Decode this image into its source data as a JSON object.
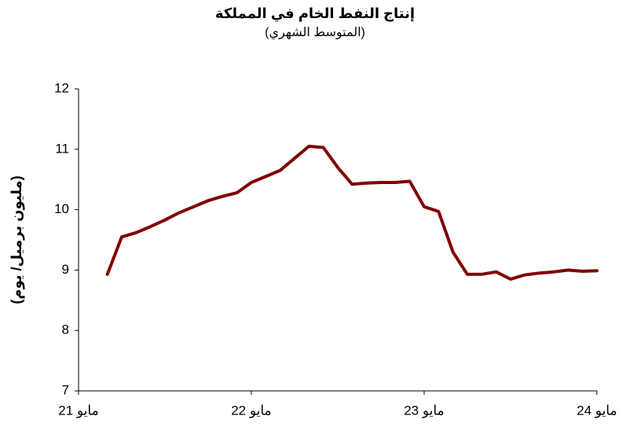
{
  "chart_data": {
    "type": "line",
    "title": "إنتاج النفط الخام في المملكة",
    "subtitle": "(المتوسط الشهري)",
    "y_label": "(مليون برميل/ يوم)",
    "categories": [
      "مايو 21",
      null,
      null,
      null,
      null,
      null,
      null,
      null,
      null,
      null,
      null,
      null,
      "مايو 22",
      null,
      null,
      null,
      null,
      null,
      null,
      null,
      null,
      null,
      null,
      null,
      "مايو 23",
      null,
      null,
      null,
      null,
      null,
      null,
      null,
      null,
      null,
      null,
      null,
      "مايو 24"
    ],
    "series": [
      {
        "name": "إنتاج النفط",
        "color": "#800000",
        "values": [
          null,
          null,
          8.93,
          9.55,
          9.62,
          9.72,
          9.83,
          9.95,
          10.05,
          10.15,
          10.22,
          10.28,
          10.45,
          10.55,
          10.65,
          10.85,
          11.05,
          11.03,
          10.7,
          10.42,
          10.44,
          10.45,
          10.45,
          10.47,
          10.05,
          9.97,
          9.3,
          8.93,
          8.93,
          8.97,
          8.85,
          8.92,
          8.95,
          8.97,
          9.0,
          8.98,
          8.99
        ]
      }
    ],
    "ylim": [
      7,
      12
    ],
    "yticks": [
      7,
      8,
      9,
      10,
      11,
      12
    ],
    "legend": false,
    "grid": false
  }
}
